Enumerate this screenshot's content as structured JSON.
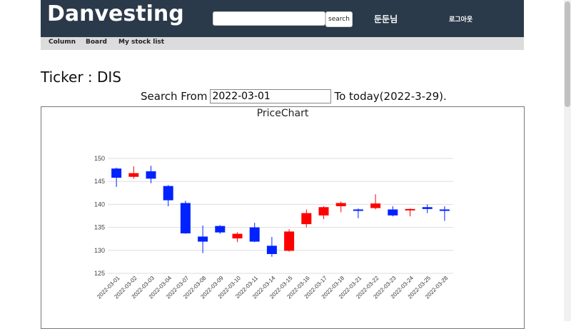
{
  "header": {
    "logo": "Danvesting",
    "search_placeholder": "",
    "search_button": "search",
    "username": "둔둔님",
    "logout": "로그아웃"
  },
  "nav": {
    "items": [
      "Column",
      "Board",
      "My stock list"
    ]
  },
  "page": {
    "ticker_label": "Ticker : DIS",
    "search_from": "Search From",
    "date_value": "2022-03-01",
    "to_today": "To today(2022-3-29)."
  },
  "chart_data": {
    "type": "candlestick",
    "title": "PriceChart",
    "ylim": [
      125,
      150
    ],
    "yticks": [
      125,
      130,
      135,
      140,
      145,
      150
    ],
    "grid": true,
    "colors": {
      "down": "#0022ff",
      "up": "#ff0000"
    },
    "candles": [
      {
        "date": "2022-03-01",
        "open": 147.8,
        "high": 148.0,
        "low": 143.8,
        "close": 145.8
      },
      {
        "date": "2022-03-02",
        "open": 146.0,
        "high": 148.3,
        "low": 145.6,
        "close": 146.8
      },
      {
        "date": "2022-03-03",
        "open": 147.2,
        "high": 148.4,
        "low": 144.6,
        "close": 145.6
      },
      {
        "date": "2022-03-04",
        "open": 144.0,
        "high": 144.2,
        "low": 139.6,
        "close": 140.9
      },
      {
        "date": "2022-03-07",
        "open": 140.3,
        "high": 140.8,
        "low": 133.6,
        "close": 133.7
      },
      {
        "date": "2022-03-08",
        "open": 133.0,
        "high": 135.4,
        "low": 129.4,
        "close": 131.9
      },
      {
        "date": "2022-03-09",
        "open": 135.3,
        "high": 135.5,
        "low": 133.6,
        "close": 133.9
      },
      {
        "date": "2022-03-10",
        "open": 132.6,
        "high": 133.9,
        "low": 131.8,
        "close": 133.6
      },
      {
        "date": "2022-03-11",
        "open": 135.0,
        "high": 136.0,
        "low": 131.8,
        "close": 131.9
      },
      {
        "date": "2022-03-14",
        "open": 131.0,
        "high": 132.9,
        "low": 128.6,
        "close": 129.2
      },
      {
        "date": "2022-03-15",
        "open": 129.9,
        "high": 134.6,
        "low": 129.7,
        "close": 134.1
      },
      {
        "date": "2022-03-16",
        "open": 135.7,
        "high": 138.9,
        "low": 135.0,
        "close": 138.1
      },
      {
        "date": "2022-03-17",
        "open": 137.6,
        "high": 139.6,
        "low": 136.8,
        "close": 139.4
      },
      {
        "date": "2022-03-18",
        "open": 139.6,
        "high": 140.6,
        "low": 138.3,
        "close": 140.3
      },
      {
        "date": "2022-03-21",
        "open": 138.9,
        "high": 139.1,
        "low": 137.0,
        "close": 138.6
      },
      {
        "date": "2022-03-22",
        "open": 139.2,
        "high": 142.2,
        "low": 138.9,
        "close": 140.2
      },
      {
        "date": "2022-03-23",
        "open": 138.9,
        "high": 139.6,
        "low": 137.4,
        "close": 137.6
      },
      {
        "date": "2022-03-24",
        "open": 138.7,
        "high": 139.1,
        "low": 137.4,
        "close": 139.0
      },
      {
        "date": "2022-03-25",
        "open": 139.4,
        "high": 140.0,
        "low": 138.1,
        "close": 139.0
      },
      {
        "date": "2022-03-28",
        "open": 138.9,
        "high": 139.6,
        "low": 136.4,
        "close": 138.6
      }
    ]
  }
}
